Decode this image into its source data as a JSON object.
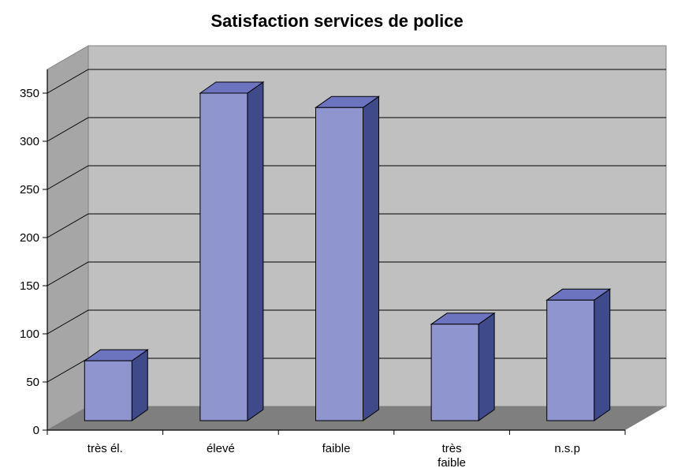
{
  "chart_data": {
    "type": "bar",
    "title": "Satisfaction services de police",
    "xlabel": "",
    "ylabel": "",
    "categories": [
      "très él.",
      "élevé",
      "faible",
      "très faible",
      "n.s.p"
    ],
    "category_lines": [
      [
        "très él."
      ],
      [
        "élevé"
      ],
      [
        "faible"
      ],
      [
        "très",
        "faible"
      ],
      [
        "n.s.p"
      ]
    ],
    "values": [
      72,
      350,
      335,
      110,
      135
    ],
    "ylim": [
      0,
      350
    ],
    "yticks": [
      0,
      50,
      100,
      150,
      200,
      250,
      300,
      350
    ],
    "grid": true,
    "legend": "none",
    "colors": {
      "bar_front": "#8f96cf",
      "bar_top": "#6c74c0",
      "bar_side": "#3f4a8a",
      "wall": "#c0c0c0",
      "wall_side": "#a6a6a6",
      "floor": "#7f7f7f",
      "grid": "#000000"
    }
  }
}
